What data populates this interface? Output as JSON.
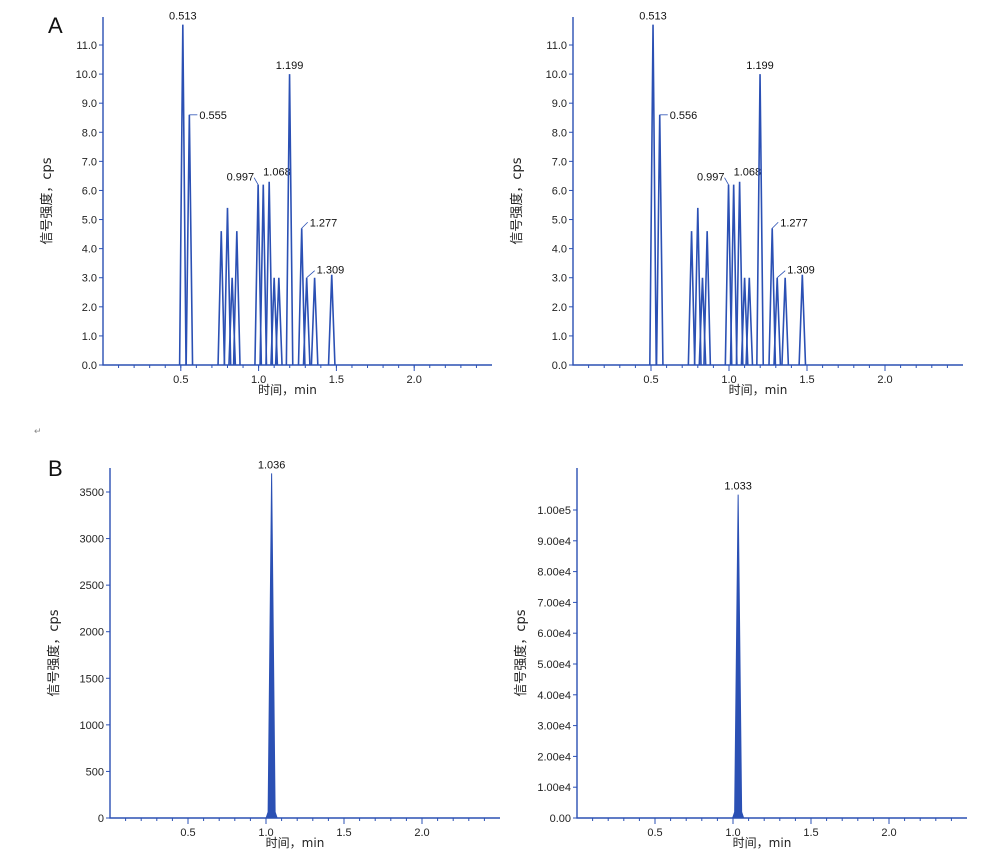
{
  "panel_labels": [
    "A",
    "B"
  ],
  "stray_mark": "↵",
  "chart_data": [
    {
      "type": "line",
      "panel": "A",
      "xlabel": "时间，min",
      "ylabel": "信号强度，cps",
      "xlim": [
        0,
        2.5
      ],
      "ylim": [
        0,
        11.6
      ],
      "xticks": [
        "0.5",
        "1.0",
        "1.5",
        "2.0"
      ],
      "yticks": [
        "0.0",
        "1.0",
        "2.0",
        "3.0",
        "4.0",
        "5.0",
        "6.0",
        "7.0",
        "8.0",
        "9.0",
        "10.0",
        "11.0"
      ],
      "peaks": [
        {
          "x": 0.513,
          "y": 11.7,
          "label": "0.513"
        },
        {
          "x": 0.555,
          "y": 8.6,
          "label": "0.555"
        },
        {
          "x": 0.76,
          "y": 4.6
        },
        {
          "x": 0.8,
          "y": 5.4
        },
        {
          "x": 0.83,
          "y": 3.0
        },
        {
          "x": 0.86,
          "y": 4.6
        },
        {
          "x": 0.997,
          "y": 6.2,
          "label": "0.997"
        },
        {
          "x": 1.03,
          "y": 6.2
        },
        {
          "x": 1.068,
          "y": 6.3,
          "label": "1.068"
        },
        {
          "x": 1.1,
          "y": 3.0
        },
        {
          "x": 1.13,
          "y": 3.0
        },
        {
          "x": 1.199,
          "y": 10.0,
          "label": "1.199"
        },
        {
          "x": 1.277,
          "y": 4.7,
          "label": "1.277"
        },
        {
          "x": 1.309,
          "y": 3.0,
          "label": "1.309"
        },
        {
          "x": 1.36,
          "y": 3.0
        },
        {
          "x": 1.47,
          "y": 3.1
        }
      ]
    },
    {
      "type": "line",
      "panel": "A",
      "xlabel": "时间，min",
      "ylabel": "信号强度，cps",
      "xlim": [
        0,
        2.5
      ],
      "ylim": [
        0,
        11.6
      ],
      "xticks": [
        "0.5",
        "1.0",
        "1.5",
        "2.0"
      ],
      "yticks": [
        "0.0",
        "1.0",
        "2.0",
        "3.0",
        "4.0",
        "5.0",
        "6.0",
        "7.0",
        "8.0",
        "9.0",
        "10.0",
        "11.0"
      ],
      "peaks": [
        {
          "x": 0.513,
          "y": 11.7,
          "label": "0.513"
        },
        {
          "x": 0.556,
          "y": 8.6,
          "label": "0.556"
        },
        {
          "x": 0.76,
          "y": 4.6
        },
        {
          "x": 0.8,
          "y": 5.4
        },
        {
          "x": 0.83,
          "y": 3.0
        },
        {
          "x": 0.86,
          "y": 4.6
        },
        {
          "x": 0.997,
          "y": 6.2,
          "label": "0.997"
        },
        {
          "x": 1.03,
          "y": 6.2
        },
        {
          "x": 1.068,
          "y": 6.3,
          "label": "1.068"
        },
        {
          "x": 1.1,
          "y": 3.0
        },
        {
          "x": 1.13,
          "y": 3.0
        },
        {
          "x": 1.199,
          "y": 10.0,
          "label": "1.199"
        },
        {
          "x": 1.277,
          "y": 4.7,
          "label": "1.277"
        },
        {
          "x": 1.309,
          "y": 3.0,
          "label": "1.309"
        },
        {
          "x": 1.36,
          "y": 3.0
        },
        {
          "x": 1.47,
          "y": 3.1
        }
      ]
    },
    {
      "type": "area",
      "panel": "B",
      "xlabel": "时间，min",
      "ylabel": "信号强度，cps",
      "xlim": [
        0,
        2.5
      ],
      "ylim": [
        0,
        3800
      ],
      "xticks": [
        "0.5",
        "1.0",
        "1.5",
        "2.0"
      ],
      "yticks": [
        "0",
        "500",
        "1000",
        "1500",
        "2000",
        "2500",
        "3000",
        "3500"
      ],
      "peaks": [
        {
          "x": 1.036,
          "y": 3700,
          "label": "1.036"
        }
      ]
    },
    {
      "type": "area",
      "panel": "B",
      "xlabel": "时间，min",
      "ylabel": "信号强度，cps",
      "xlim": [
        0,
        2.5
      ],
      "ylim": [
        0,
        108000
      ],
      "xticks": [
        "0.5",
        "1.0",
        "1.5",
        "2.0"
      ],
      "yticks": [
        "0.00",
        "1.00e4",
        "2.00e4",
        "3.00e4",
        "4.00e4",
        "5.00e4",
        "6.00e4",
        "7.00e4",
        "8.00e4",
        "9.00e4",
        "1.00e5"
      ],
      "peaks": [
        {
          "x": 1.033,
          "y": 105000,
          "label": "1.033"
        }
      ]
    }
  ]
}
